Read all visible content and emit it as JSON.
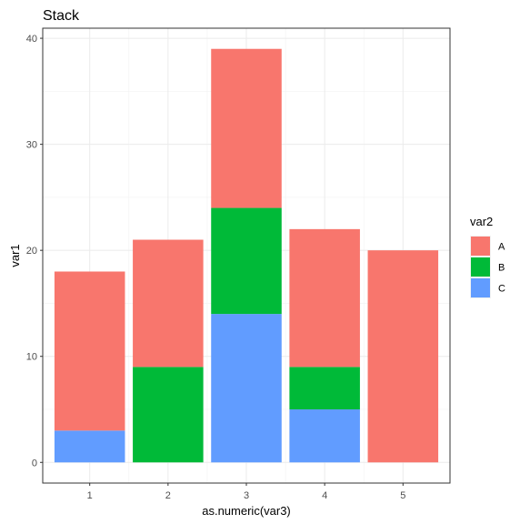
{
  "chart_data": {
    "type": "bar",
    "stacked": true,
    "title": "Stack",
    "xlabel": "as.numeric(var3)",
    "ylabel": "var1",
    "categories": [
      "1",
      "2",
      "3",
      "4",
      "5"
    ],
    "series": [
      {
        "name": "C",
        "color": "#619CFF",
        "values": [
          3,
          0,
          14,
          5,
          0
        ]
      },
      {
        "name": "B",
        "color": "#00BA38",
        "values": [
          0,
          9,
          10,
          4,
          0
        ]
      },
      {
        "name": "A",
        "color": "#F8766D",
        "values": [
          15,
          12,
          15,
          13,
          20
        ]
      }
    ],
    "ylim": [
      -1.95,
      40.95
    ],
    "yticks": [
      "0",
      "10",
      "20",
      "30",
      "40"
    ],
    "grid": true,
    "legend": {
      "title": "var2",
      "position": "right",
      "entries": [
        {
          "label": "A",
          "color": "#F8766D"
        },
        {
          "label": "B",
          "color": "#00BA38"
        },
        {
          "label": "C",
          "color": "#619CFF"
        }
      ]
    }
  }
}
